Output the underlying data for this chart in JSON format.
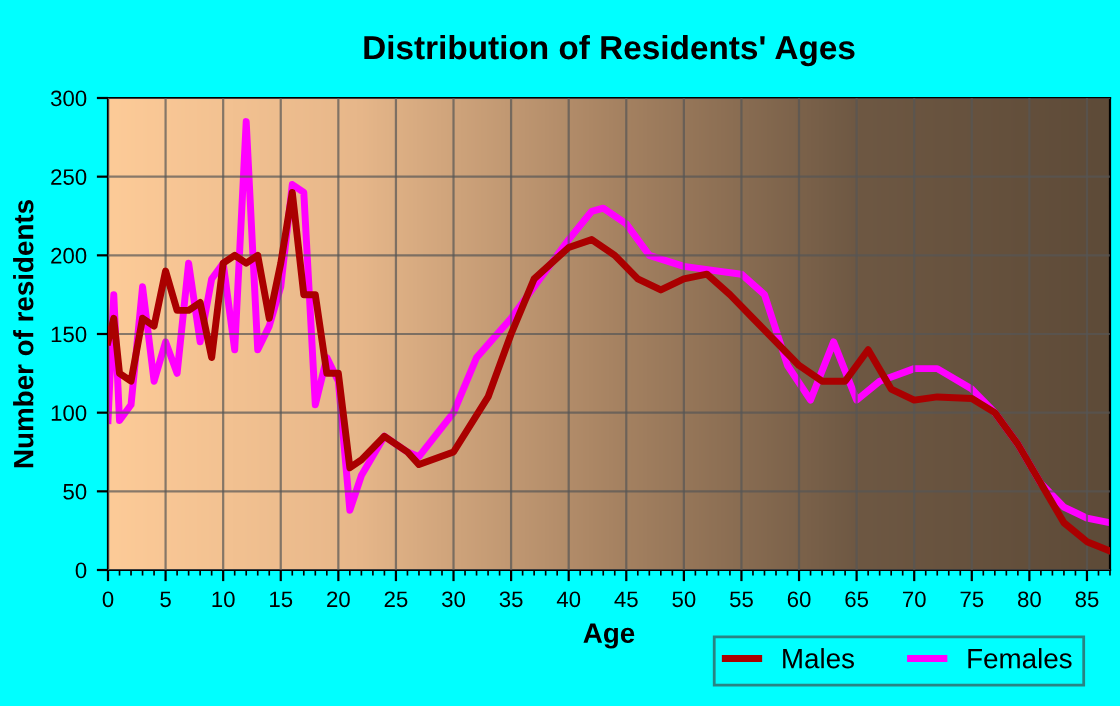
{
  "chart_data": {
    "type": "line",
    "title": "Distribution of Residents' Ages",
    "xlabel": "Age",
    "ylabel": "Number of residents",
    "xlim": [
      0,
      87
    ],
    "xticks": [
      0,
      5,
      10,
      15,
      20,
      25,
      30,
      35,
      40,
      45,
      50,
      55,
      60,
      65,
      70,
      75,
      80,
      85
    ],
    "ylim": [
      0,
      300
    ],
    "yticks": [
      0,
      50,
      100,
      150,
      200,
      250,
      300
    ],
    "grid": true,
    "legend": "bottom right",
    "marker": "none",
    "line_style": "solid",
    "series": [
      {
        "name": "Males",
        "color": "#aa0000",
        "x": [
          0,
          0.5,
          1,
          2,
          3,
          4,
          5,
          6,
          7,
          8,
          9,
          10,
          11,
          12,
          13,
          14,
          15,
          16,
          17,
          18,
          19,
          20,
          21,
          22,
          24,
          26,
          27,
          30,
          33,
          35,
          37,
          40,
          42,
          44,
          46,
          48,
          50,
          52,
          54,
          56,
          58,
          60,
          62,
          64,
          66,
          68,
          70,
          72,
          75,
          77,
          79,
          81,
          83,
          85,
          87
        ],
        "values": [
          145,
          160,
          125,
          120,
          160,
          155,
          190,
          165,
          165,
          170,
          135,
          195,
          200,
          195,
          200,
          160,
          195,
          240,
          175,
          175,
          125,
          125,
          65,
          70,
          85,
          75,
          67,
          75,
          110,
          150,
          185,
          205,
          210,
          200,
          185,
          178,
          185,
          188,
          175,
          160,
          145,
          130,
          120,
          120,
          140,
          115,
          108,
          110,
          109,
          100,
          80,
          55,
          30,
          18,
          12
        ]
      },
      {
        "name": "Females",
        "color": "#ff00ff",
        "x": [
          0,
          0.5,
          1,
          2,
          3,
          4,
          5,
          6,
          7,
          8,
          9,
          10,
          11,
          12,
          13,
          14,
          15,
          16,
          17,
          18,
          19,
          20,
          21,
          22,
          24,
          26,
          27,
          30,
          32,
          35,
          37,
          40,
          42,
          43,
          45,
          47,
          50,
          53,
          55,
          57,
          59,
          61,
          63,
          65,
          67,
          70,
          72,
          75,
          77,
          79,
          81,
          83,
          85,
          87
        ],
        "values": [
          95,
          175,
          95,
          105,
          180,
          120,
          145,
          125,
          195,
          145,
          185,
          195,
          140,
          285,
          140,
          155,
          180,
          245,
          240,
          105,
          135,
          120,
          38,
          60,
          85,
          75,
          72,
          100,
          135,
          160,
          180,
          210,
          228,
          230,
          220,
          200,
          193,
          190,
          188,
          175,
          130,
          108,
          145,
          108,
          120,
          128,
          128,
          115,
          100,
          80,
          55,
          40,
          33,
          30
        ]
      }
    ]
  }
}
